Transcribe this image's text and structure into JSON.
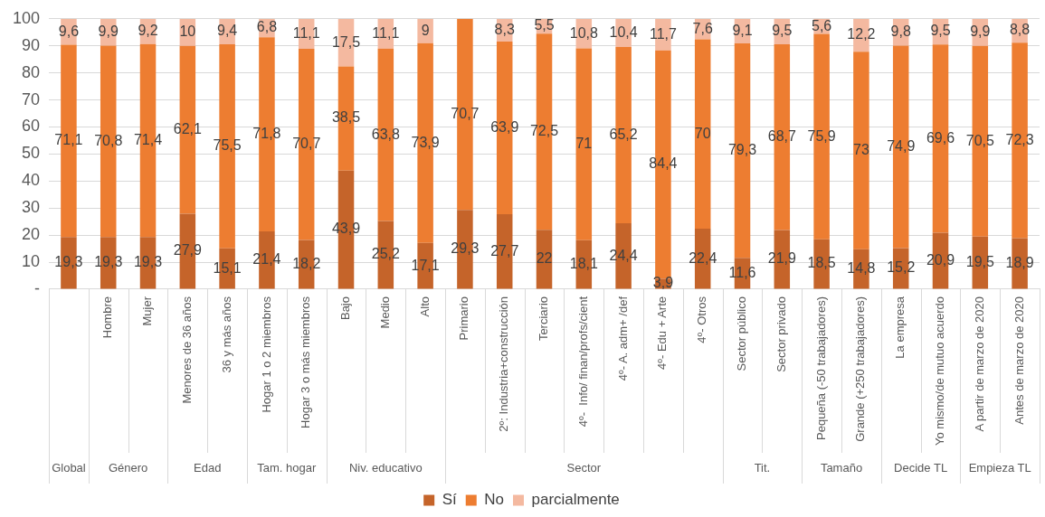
{
  "chart_data": {
    "type": "bar",
    "stacked": true,
    "categories": [
      null,
      "Hombre",
      "Mujer",
      "Menores de 36 años",
      "36 y más años",
      "Hogar 1 o 2 miembros",
      "Hogar 3 o más miembros",
      "Bajo",
      "Medio",
      "Alto",
      "Primario",
      "2º: Industria+construcción",
      "Terciario",
      "4º-  Info/ finan/profs/cient",
      "4º- A. adm+ /def",
      "4º- Edu + Arte",
      "4º- Otros",
      "Sector público",
      "Sector privado",
      "Pequeña (-50 trabajadores)",
      "Grande (+250 trabajadores)",
      "La empresa",
      "Yo mismo/de mutuo acuerdo",
      "A partir de marzo de 2020",
      "Antes de marzo de 2020"
    ],
    "series": [
      {
        "name": "Sí",
        "color": "#c5642a",
        "values": [
          19.3,
          19.3,
          19.3,
          27.9,
          15.1,
          21.4,
          18.2,
          43.9,
          25.2,
          17.1,
          29.3,
          27.7,
          22,
          18.1,
          24.4,
          3.9,
          22.4,
          11.6,
          21.9,
          18.5,
          14.8,
          15.2,
          20.9,
          19.5,
          18.9
        ],
        "value_labels": [
          "19,3",
          "19,3",
          "19,3",
          "27,9",
          "15,1",
          "21,4",
          "18,2",
          "43,9",
          "25,2",
          "17,1",
          "29,3",
          "27,7",
          "22",
          "18,1",
          "24,4",
          "3,9",
          "22,4",
          "11,6",
          "21,9",
          "18,5",
          "14,8",
          "15,2",
          "20,9",
          "19,5",
          "18,9"
        ]
      },
      {
        "name": "No",
        "color": "#ed7d31",
        "values": [
          71.1,
          70.8,
          71.4,
          62.1,
          75.5,
          71.8,
          70.7,
          38.5,
          63.8,
          73.9,
          70.7,
          63.9,
          72.5,
          71,
          65.2,
          84.4,
          70,
          79.3,
          68.7,
          75.9,
          73,
          74.9,
          69.6,
          70.5,
          72.3
        ],
        "value_labels": [
          "71,1",
          "70,8",
          "71,4",
          "62,1",
          "75,5",
          "71,8",
          "70,7",
          "38,5",
          "63,8",
          "73,9",
          "70,7",
          "63,9",
          "72,5",
          "71",
          "65,2",
          "84,4",
          "70",
          "79,3",
          "68,7",
          "75,9",
          "73",
          "74,9",
          "69,6",
          "70,5",
          "72,3"
        ]
      },
      {
        "name": "parcialmente",
        "color": "#f4b9a0",
        "values": [
          9.6,
          9.9,
          9.2,
          10,
          9.4,
          6.8,
          11.1,
          17.5,
          11.1,
          9,
          null,
          8.3,
          5.5,
          10.8,
          10.4,
          11.7,
          7.6,
          9.1,
          9.5,
          5.6,
          12.2,
          9.8,
          9.5,
          9.9,
          8.8
        ],
        "value_labels": [
          "9,6",
          "9,9",
          "9,2",
          "10",
          "9,4",
          "6,8",
          "11,1",
          "17,5",
          "11,1",
          "9",
          null,
          "8,3",
          "5,5",
          "10,8",
          "10,4",
          "11,7",
          "7,6",
          "9,1",
          "9,5",
          "5,6",
          "12,2",
          "9,8",
          "9,5",
          "9,9",
          "8,8"
        ]
      }
    ],
    "ylim": [
      0,
      100
    ],
    "yticks": [
      {
        "value": 0,
        "label": "-"
      },
      10,
      20,
      30,
      40,
      50,
      60,
      70,
      80,
      90,
      100
    ],
    "grid": "y",
    "legend": "bottom",
    "annotations": [
      "Global",
      "Género",
      "Edad",
      "Tam. hogar",
      "Niv. educativo",
      "Sector",
      "Tit.",
      "Tamaño",
      "Decide TL",
      "Empieza TL"
    ]
  }
}
